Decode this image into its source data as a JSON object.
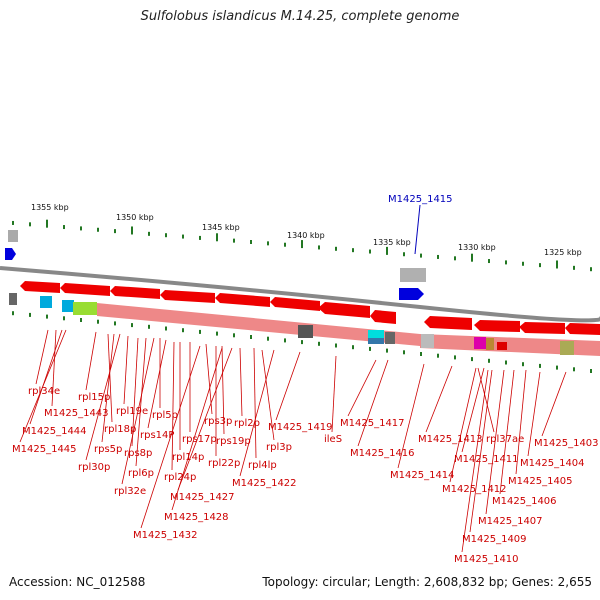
{
  "title": "Sulfolobus islandicus M.14.25, complete genome",
  "accession": "Accession: NC_012588",
  "topology": "Topology: circular; Length: 2,608,832 bp; Genes: 2,655",
  "highlight_gene": "M1425_1415",
  "kbp_labels": [
    "1355 kbp",
    "1350 kbp",
    "1345 kbp",
    "1340 kbp",
    "1335 kbp",
    "1330 kbp",
    "1325 kbp"
  ],
  "gene_labels": [
    "rpl34e",
    "M1425_1443",
    "M1425_1444",
    "M1425_1445",
    "rpl15p",
    "rpl18p",
    "rps5p",
    "rpl30p",
    "rpl19e",
    "rps8p",
    "rpl6p",
    "rpl32e",
    "rpl5p",
    "rps14P",
    "rpl24p",
    "rpl14p",
    "rps17p",
    "rps3p",
    "rpl22p",
    "rps19p",
    "rpl2p",
    "rpl4lp",
    "rpl3p",
    "M1425_1427",
    "M1425_1428",
    "M1425_1432",
    "M1425_1422",
    "M1425_1419",
    "ileS",
    "M1425_1417",
    "M1425_1416",
    "M1425_1414",
    "M1425_1413",
    "M1425_1412",
    "rpl37ae",
    "M1425_1411",
    "M1425_1409",
    "M1425_1410",
    "M1425_1407",
    "M1425_1406",
    "M1425_1405",
    "M1425_1404",
    "M1425_1403"
  ]
}
